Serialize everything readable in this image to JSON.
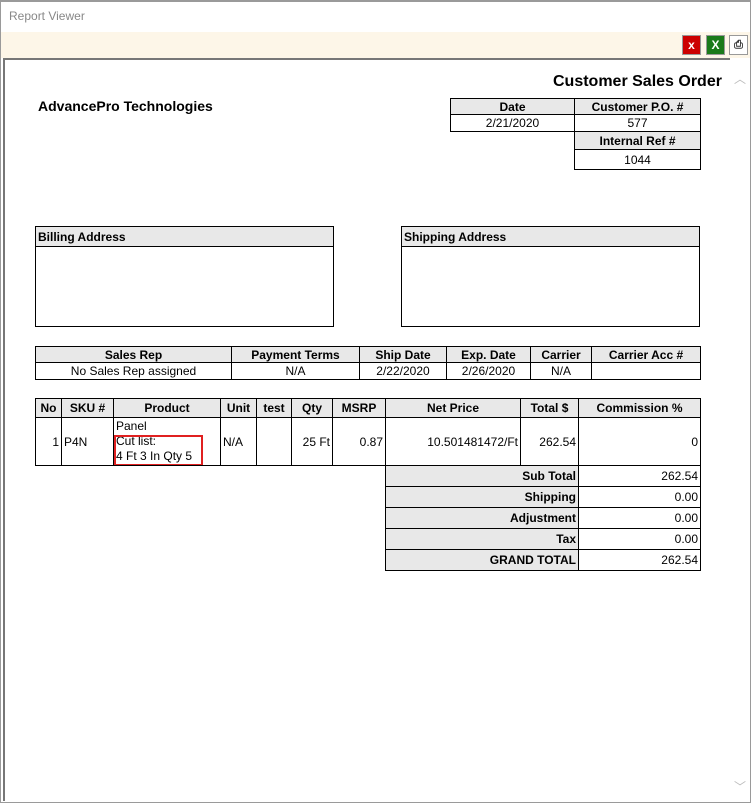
{
  "window": {
    "title": "Report Viewer"
  },
  "toolbar": {
    "close_icon": "close-icon",
    "excel_icon": "excel-export-icon",
    "print_icon": "print-icon"
  },
  "report": {
    "title": "Customer Sales Order",
    "company": "AdvancePro Technologies",
    "header": {
      "date_label": "Date",
      "date": "2/21/2020",
      "po_label": "Customer P.O. #",
      "po": "577",
      "ref_label": "Internal Ref #",
      "ref": "1044"
    },
    "billing_label": "Billing Address",
    "shipping_label": "Shipping Address",
    "order_info": {
      "headers": [
        "Sales Rep",
        "Payment Terms",
        "Ship Date",
        "Exp. Date",
        "Carrier",
        "Carrier Acc #"
      ],
      "values": [
        "No Sales Rep assigned",
        "N/A",
        "2/22/2020",
        "2/26/2020",
        "N/A",
        ""
      ]
    },
    "items": {
      "headers": [
        "No",
        "SKU #",
        "Product",
        "Unit",
        "test",
        "Qty",
        "MSRP",
        "Net Price",
        "Total $",
        "Commission %"
      ],
      "rows": [
        {
          "no": "1",
          "sku": "P4N",
          "product_name": "Panel",
          "product_line2": "Cut list:",
          "product_line3": "4 Ft 3 In Qty 5",
          "unit": "N/A",
          "test": "",
          "qty": "25 Ft",
          "msrp": "0.87",
          "net_price": "10.501481472/Ft",
          "total": "262.54",
          "commission": "0"
        }
      ]
    },
    "totals": [
      {
        "label": "Sub Total",
        "value": "262.54"
      },
      {
        "label": "Shipping",
        "value": "0.00"
      },
      {
        "label": "Adjustment",
        "value": "0.00"
      },
      {
        "label": "Tax",
        "value": "0.00"
      },
      {
        "label": "GRAND TOTAL",
        "value": "262.54"
      }
    ],
    "highlight_color": "#e02020"
  }
}
